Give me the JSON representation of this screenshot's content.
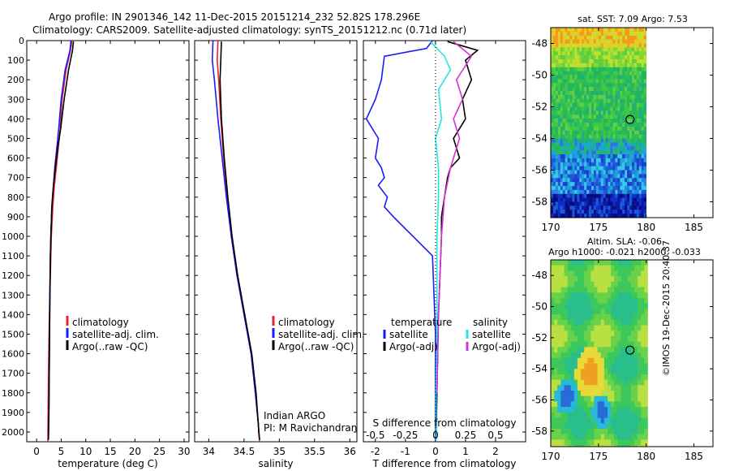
{
  "header": {
    "line1": "Argo profile: IN 2901346_142 11-Dec-2015 20151214_232 52.82S 178.296E",
    "line2": "Climatology: CARS2009. Satellite-adjusted climatology: synTS_20151212.nc (0.71d later)"
  },
  "footer": {
    "stamp": "©IMOS 19-Dec-2015 20:40:37"
  },
  "colors": {
    "climatology": "#e8222a",
    "satellite": "#1a1aff",
    "argo": "#000000",
    "sat_salinity": "#22e5e5",
    "argo_salinity": "#d633d6"
  },
  "chart_data": [
    {
      "type": "line",
      "xlabel": "temperature (deg C)",
      "ylabel": "",
      "xlim": [
        -2,
        31
      ],
      "ylim": [
        2050,
        0
      ],
      "xticks": [
        0,
        5,
        10,
        15,
        20,
        25,
        30
      ],
      "yticks": [
        0,
        100,
        200,
        300,
        400,
        500,
        600,
        700,
        800,
        900,
        1000,
        1100,
        1200,
        1300,
        1400,
        1500,
        1600,
        1700,
        1800,
        1900,
        2000
      ],
      "legend": [
        "climatology",
        "satellite-adj. clim.",
        "Argo(..raw -QC)"
      ],
      "series": [
        {
          "name": "climatology",
          "color": "#e8222a",
          "x": [
            7.2,
            6.9,
            6.0,
            5.2,
            4.8,
            4.4,
            4.0,
            3.6,
            3.3,
            3.0,
            2.9,
            2.8,
            2.6,
            2.4,
            2.3,
            2.3
          ],
          "y": [
            0,
            50,
            150,
            300,
            450,
            550,
            650,
            750,
            850,
            1000,
            1100,
            1200,
            1400,
            1700,
            2000,
            2050
          ]
        },
        {
          "name": "satellite-adj. clim.",
          "color": "#1a1aff",
          "x": [
            7.0,
            6.8,
            5.8,
            5.0,
            4.5,
            4.1,
            3.7,
            3.4,
            3.1,
            2.9,
            2.8,
            2.7,
            2.6,
            2.5,
            2.4
          ],
          "y": [
            0,
            50,
            150,
            300,
            450,
            550,
            650,
            750,
            850,
            1000,
            1100,
            1300,
            1600,
            1900,
            2040
          ]
        },
        {
          "name": "Argo(..raw -QC)",
          "color": "#000000",
          "x": [
            7.5,
            7.3,
            6.5,
            5.6,
            4.9,
            4.3,
            3.8,
            3.4,
            3.1,
            2.9,
            2.8,
            2.7,
            2.6,
            2.5,
            2.4
          ],
          "y": [
            5,
            50,
            150,
            300,
            450,
            550,
            650,
            750,
            850,
            1000,
            1100,
            1300,
            1600,
            1900,
            2040
          ]
        }
      ]
    },
    {
      "type": "line",
      "xlabel": "salinity",
      "ylabel": "",
      "xlim": [
        33.8,
        36.1
      ],
      "ylim": [
        2050,
        0
      ],
      "xticks": [
        34,
        34.5,
        35,
        35.5,
        36
      ],
      "legend": [
        "climatology",
        "satellite-adj. clim.",
        "Argo(..raw -QC)"
      ],
      "annotations": [
        "Indian ARGO",
        "PI: M Ravichandran"
      ],
      "series": [
        {
          "name": "climatology",
          "color": "#e8222a",
          "x": [
            34.13,
            34.12,
            34.14,
            34.17,
            34.21,
            34.26,
            34.32,
            34.4,
            34.5,
            34.6,
            34.66,
            34.7,
            34.71,
            34.72
          ],
          "y": [
            0,
            100,
            200,
            400,
            600,
            800,
            1000,
            1200,
            1400,
            1600,
            1800,
            1950,
            2000,
            2050
          ]
        },
        {
          "name": "satellite-adj. clim.",
          "color": "#1a1aff",
          "x": [
            34.06,
            34.05,
            34.08,
            34.13,
            34.19,
            34.25,
            34.32,
            34.4,
            34.5,
            34.6,
            34.66,
            34.7,
            34.71,
            34.72
          ],
          "y": [
            0,
            100,
            200,
            400,
            600,
            800,
            1000,
            1200,
            1400,
            1600,
            1800,
            1950,
            2000,
            2040
          ]
        },
        {
          "name": "Argo(..raw -QC)",
          "color": "#000000",
          "x": [
            34.18,
            34.17,
            34.16,
            34.18,
            34.22,
            34.27,
            34.33,
            34.41,
            34.51,
            34.61,
            34.67,
            34.7,
            34.71,
            34.72
          ],
          "y": [
            5,
            100,
            200,
            400,
            600,
            800,
            1000,
            1200,
            1400,
            1600,
            1800,
            1950,
            2000,
            2040
          ]
        }
      ]
    },
    {
      "type": "line",
      "xlabel": "T difference from climatology",
      "xlabel_top": "S difference from climatology",
      "xlim": [
        -2.4,
        3.0
      ],
      "ylim": [
        2050,
        0
      ],
      "xticks": [
        -2,
        -1,
        0,
        1,
        2
      ],
      "sticks": [
        "-0.5",
        "-0.25",
        "0",
        "0.25",
        "0.5"
      ],
      "legend_temperature": {
        "title": "temperature",
        "items": [
          "satellite",
          "Argo(-adj)"
        ]
      },
      "legend_salinity": {
        "title": "salinity",
        "items": [
          "satellite",
          "Argo(-adj)"
        ]
      },
      "series": [
        {
          "name": "satellite",
          "color": "#1a1aff",
          "x": [
            -0.1,
            -0.3,
            -1.7,
            -1.8,
            -2.0,
            -2.3,
            -1.9,
            -2.0,
            -1.8,
            -1.7,
            -1.9,
            -1.6,
            -1.7,
            -1.4,
            -0.1,
            0,
            0,
            0
          ],
          "y": [
            0,
            40,
            80,
            200,
            300,
            400,
            500,
            600,
            650,
            700,
            740,
            800,
            850,
            900,
            1100,
            1500,
            1900,
            2040
          ]
        },
        {
          "name": "Argo(-adj)",
          "color": "#000000",
          "x": [
            0.4,
            1.4,
            1.0,
            1.2,
            0.9,
            1.0,
            0.6,
            0.8,
            0.5,
            0.4,
            0.3,
            0.2,
            0.2,
            0.1,
            0.05,
            0.02
          ],
          "y": [
            5,
            50,
            100,
            200,
            300,
            400,
            500,
            600,
            650,
            700,
            800,
            900,
            1000,
            1400,
            1800,
            2040
          ]
        },
        {
          "name": "satellite",
          "color": "#22e5e5",
          "x": [
            -0.2,
            0.3,
            0.5,
            0.1,
            0.2,
            0.0,
            0.1,
            0.1,
            0.05,
            0.05,
            0.02,
            0.02
          ],
          "y": [
            0,
            80,
            150,
            250,
            400,
            500,
            650,
            800,
            1000,
            1400,
            1800,
            2040
          ]
        },
        {
          "name": "Argo(-adj)",
          "color": "#d633d6",
          "x": [
            0.6,
            1.2,
            0.7,
            0.9,
            0.6,
            0.8,
            0.5,
            0.3,
            0.2,
            0.1,
            0.05
          ],
          "y": [
            5,
            80,
            200,
            300,
            400,
            500,
            650,
            800,
            1000,
            1400,
            1800
          ]
        }
      ]
    },
    {
      "type": "heatmap",
      "title": "sat. SST: 7.09 Argo: 7.53",
      "xlim": [
        170,
        187
      ],
      "ylim": [
        -59,
        -47
      ],
      "xticks": [
        170,
        175,
        180,
        185
      ],
      "yticks": [
        -48,
        -50,
        -52,
        -54,
        -56,
        -58
      ],
      "marker": {
        "lon": 178.3,
        "lat": -52.8
      }
    },
    {
      "type": "heatmap",
      "title": "Altim. SLA: -0.06",
      "subtitle": "Argo h1000: -0.021 h2000: -0.033",
      "xlim": [
        170,
        187
      ],
      "ylim": [
        -59,
        -47
      ],
      "xticks": [
        170,
        175,
        180,
        185
      ],
      "yticks": [
        -48,
        -50,
        -52,
        -54,
        -56,
        -58
      ],
      "marker": {
        "lon": 178.3,
        "lat": -52.8
      }
    }
  ]
}
